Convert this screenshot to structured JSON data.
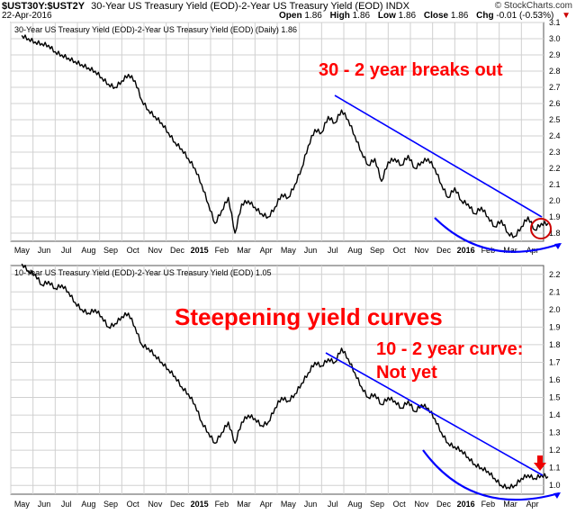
{
  "header": {
    "symbol": "$UST30Y:$UST2Y",
    "description": "30-Year US Treasury Yield (EOD)-2-Year US Treasury Yield (EOD)",
    "exchange": "INDX",
    "date": "22-Apr-2016",
    "brand": "© StockCharts.com",
    "open_label": "Open",
    "open": "1.86",
    "high_label": "High",
    "high": "1.86",
    "low_label": "Low",
    "low": "1.86",
    "close_label": "Close",
    "close": "1.86",
    "chg_label": "Chg",
    "chg": "-0.01 (-0.53%)",
    "chg_arrow": "▼"
  },
  "annotations": {
    "top": "30 - 2 year breaks out",
    "middle": "Steepening yield curves",
    "bottom_line1": "10 - 2 year curve:",
    "bottom_line2": "Not yet"
  },
  "colors": {
    "annotation_text": "#ff0000",
    "trendline": "#0000ff",
    "price_line": "#000000",
    "grid": "#d0d0d0",
    "breakout_circle": "#cc0000",
    "down_arrow": "#ee0000"
  },
  "x_axis_labels": [
    "May",
    "Jun",
    "Jul",
    "Aug",
    "Sep",
    "Oct",
    "Nov",
    "Dec",
    "2015",
    "Feb",
    "Mar",
    "Apr",
    "May",
    "Jun",
    "Jul",
    "Aug",
    "Sep",
    "Oct",
    "Nov",
    "Dec",
    "2016",
    "Feb",
    "Mar",
    "Apr"
  ],
  "chart_data": [
    {
      "type": "line",
      "legend": "30-Year US Treasury Yield (EOD)-2-Year US Treasury Yield (EOD) (Daily) 1.86",
      "ylim": [
        1.75,
        3.1
      ],
      "yticks": [
        "1.8",
        "1.9",
        "2.0",
        "2.1",
        "2.2",
        "2.3",
        "2.4",
        "2.5",
        "2.6",
        "2.7",
        "2.8",
        "2.9",
        "3.0",
        "3.1"
      ],
      "x": [
        "May",
        "Jun",
        "Jul",
        "Aug",
        "Sep",
        "Oct",
        "Nov",
        "Dec",
        "2015",
        "Feb",
        "Mar",
        "Apr",
        "May",
        "Jun",
        "Jul",
        "Aug",
        "Sep",
        "Oct",
        "Nov",
        "Dec",
        "2016",
        "Feb",
        "Mar",
        "Apr"
      ],
      "series": [
        {
          "points": [
            [
              0,
              3.02
            ],
            [
              0.3,
              3.0
            ],
            [
              0.6,
              2.98
            ],
            [
              0.9,
              2.97
            ],
            [
              1.2,
              2.96
            ],
            [
              1.5,
              2.92
            ],
            [
              1.8,
              2.9
            ],
            [
              2.1,
              2.88
            ],
            [
              2.4,
              2.86
            ],
            [
              2.7,
              2.84
            ],
            [
              3.0,
              2.82
            ],
            [
              3.3,
              2.8
            ],
            [
              3.6,
              2.76
            ],
            [
              3.9,
              2.72
            ],
            [
              4.2,
              2.7
            ],
            [
              4.5,
              2.74
            ],
            [
              4.8,
              2.78
            ],
            [
              5.1,
              2.74
            ],
            [
              5.4,
              2.62
            ],
            [
              5.7,
              2.56
            ],
            [
              6.0,
              2.52
            ],
            [
              6.3,
              2.48
            ],
            [
              6.6,
              2.42
            ],
            [
              6.9,
              2.36
            ],
            [
              7.2,
              2.32
            ],
            [
              7.5,
              2.26
            ],
            [
              7.8,
              2.2
            ],
            [
              8.1,
              2.1
            ],
            [
              8.4,
              1.98
            ],
            [
              8.7,
              1.86
            ],
            [
              9.0,
              1.94
            ],
            [
              9.3,
              2.02
            ],
            [
              9.6,
              1.8
            ],
            [
              9.9,
              1.98
            ],
            [
              10.2,
              2.0
            ],
            [
              10.5,
              1.96
            ],
            [
              10.8,
              1.92
            ],
            [
              11.1,
              1.9
            ],
            [
              11.4,
              1.96
            ],
            [
              11.7,
              2.04
            ],
            [
              12.0,
              2.02
            ],
            [
              12.3,
              2.1
            ],
            [
              12.6,
              2.2
            ],
            [
              12.9,
              2.34
            ],
            [
              13.2,
              2.44
            ],
            [
              13.5,
              2.42
            ],
            [
              13.8,
              2.52
            ],
            [
              14.1,
              2.48
            ],
            [
              14.4,
              2.56
            ],
            [
              14.7,
              2.5
            ],
            [
              15.0,
              2.4
            ],
            [
              15.3,
              2.3
            ],
            [
              15.6,
              2.22
            ],
            [
              15.9,
              2.26
            ],
            [
              16.2,
              2.12
            ],
            [
              16.5,
              2.24
            ],
            [
              16.8,
              2.26
            ],
            [
              17.1,
              2.22
            ],
            [
              17.4,
              2.28
            ],
            [
              17.7,
              2.2
            ],
            [
              18.0,
              2.24
            ],
            [
              18.3,
              2.26
            ],
            [
              18.6,
              2.2
            ],
            [
              18.9,
              2.1
            ],
            [
              19.2,
              2.02
            ],
            [
              19.5,
              2.08
            ],
            [
              19.8,
              2.0
            ],
            [
              20.1,
              1.98
            ],
            [
              20.4,
              1.92
            ],
            [
              20.7,
              1.96
            ],
            [
              21.0,
              1.9
            ],
            [
              21.3,
              1.84
            ],
            [
              21.6,
              1.88
            ],
            [
              21.9,
              1.8
            ],
            [
              22.2,
              1.78
            ],
            [
              22.5,
              1.84
            ],
            [
              22.8,
              1.9
            ],
            [
              23.1,
              1.82
            ],
            [
              23.4,
              1.86
            ],
            [
              23.7,
              1.86
            ]
          ]
        }
      ]
    },
    {
      "type": "line",
      "legend": "10-Year US Treasury Yield (EOD)-2-Year US Treasury Yield (EOD) 1.05",
      "ylim": [
        0.95,
        2.25
      ],
      "yticks": [
        "1.0",
        "1.1",
        "1.2",
        "1.3",
        "1.4",
        "1.5",
        "1.6",
        "1.7",
        "1.8",
        "1.9",
        "2.0",
        "2.1",
        "2.2"
      ],
      "x": [
        "May",
        "Jun",
        "Jul",
        "Aug",
        "Sep",
        "Oct",
        "Nov",
        "Dec",
        "2015",
        "Feb",
        "Mar",
        "Apr",
        "May",
        "Jun",
        "Jul",
        "Aug",
        "Sep",
        "Oct",
        "Nov",
        "Dec",
        "2016",
        "Feb",
        "Mar",
        "Apr"
      ],
      "series": [
        {
          "points": [
            [
              0,
              2.26
            ],
            [
              0.3,
              2.22
            ],
            [
              0.6,
              2.2
            ],
            [
              0.9,
              2.14
            ],
            [
              1.2,
              2.16
            ],
            [
              1.5,
              2.12
            ],
            [
              1.8,
              2.14
            ],
            [
              2.1,
              2.1
            ],
            [
              2.4,
              2.04
            ],
            [
              2.7,
              2.0
            ],
            [
              3.0,
              1.98
            ],
            [
              3.3,
              2.0
            ],
            [
              3.6,
              1.96
            ],
            [
              3.9,
              1.9
            ],
            [
              4.2,
              1.92
            ],
            [
              4.5,
              1.96
            ],
            [
              4.8,
              1.98
            ],
            [
              5.1,
              1.9
            ],
            [
              5.4,
              1.8
            ],
            [
              5.7,
              1.78
            ],
            [
              6.0,
              1.74
            ],
            [
              6.3,
              1.7
            ],
            [
              6.6,
              1.66
            ],
            [
              6.9,
              1.62
            ],
            [
              7.2,
              1.56
            ],
            [
              7.5,
              1.52
            ],
            [
              7.8,
              1.46
            ],
            [
              8.1,
              1.36
            ],
            [
              8.4,
              1.3
            ],
            [
              8.7,
              1.24
            ],
            [
              9.0,
              1.3
            ],
            [
              9.3,
              1.36
            ],
            [
              9.6,
              1.24
            ],
            [
              9.9,
              1.36
            ],
            [
              10.2,
              1.4
            ],
            [
              10.5,
              1.38
            ],
            [
              10.8,
              1.34
            ],
            [
              11.1,
              1.36
            ],
            [
              11.4,
              1.44
            ],
            [
              11.7,
              1.5
            ],
            [
              12.0,
              1.48
            ],
            [
              12.3,
              1.52
            ],
            [
              12.6,
              1.58
            ],
            [
              12.9,
              1.64
            ],
            [
              13.2,
              1.7
            ],
            [
              13.5,
              1.68
            ],
            [
              13.8,
              1.72
            ],
            [
              14.1,
              1.7
            ],
            [
              14.4,
              1.78
            ],
            [
              14.7,
              1.72
            ],
            [
              15.0,
              1.64
            ],
            [
              15.3,
              1.56
            ],
            [
              15.6,
              1.5
            ],
            [
              15.9,
              1.52
            ],
            [
              16.2,
              1.46
            ],
            [
              16.5,
              1.5
            ],
            [
              16.8,
              1.48
            ],
            [
              17.1,
              1.44
            ],
            [
              17.4,
              1.48
            ],
            [
              17.7,
              1.42
            ],
            [
              18.0,
              1.46
            ],
            [
              18.3,
              1.44
            ],
            [
              18.6,
              1.38
            ],
            [
              18.9,
              1.3
            ],
            [
              19.2,
              1.24
            ],
            [
              19.5,
              1.22
            ],
            [
              19.8,
              1.2
            ],
            [
              20.1,
              1.16
            ],
            [
              20.4,
              1.12
            ],
            [
              20.7,
              1.1
            ],
            [
              21.0,
              1.08
            ],
            [
              21.3,
              1.04
            ],
            [
              21.6,
              1.0
            ],
            [
              21.9,
              0.99
            ],
            [
              22.2,
              1.0
            ],
            [
              22.5,
              1.04
            ],
            [
              22.8,
              1.06
            ],
            [
              23.1,
              1.04
            ],
            [
              23.4,
              1.06
            ],
            [
              23.7,
              1.05
            ]
          ]
        }
      ]
    }
  ]
}
